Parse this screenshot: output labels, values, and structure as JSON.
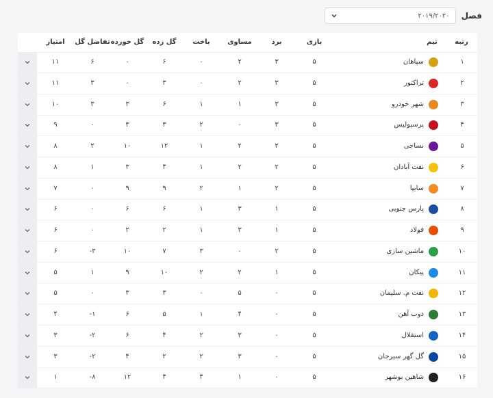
{
  "season": {
    "label": "فصل",
    "selected": "۲۰۱۹/۲۰۲۰"
  },
  "headers": {
    "rank": "رتبه",
    "team": "تیم",
    "games": "بازی",
    "wins": "برد",
    "draws": "مساوی",
    "losses": "باخت",
    "gf": "گل زده",
    "ga": "گل خورده",
    "gd": "تفاضل گل",
    "pts": "امتیاز"
  },
  "rows": [
    {
      "rank": "۱",
      "team": "سپاهان",
      "games": "۵",
      "wins": "۳",
      "draws": "۲",
      "losses": "۰",
      "gf": "۶",
      "ga": "۰",
      "gd": "۶",
      "pts": "۱۱",
      "logo_color": "#d4a017"
    },
    {
      "rank": "۲",
      "team": "تراکتور",
      "games": "۵",
      "wins": "۳",
      "draws": "۲",
      "losses": "۰",
      "gf": "۳",
      "ga": "۰",
      "gd": "۳",
      "pts": "۱۱",
      "logo_color": "#d62828"
    },
    {
      "rank": "۳",
      "team": "شهر خودرو",
      "games": "۵",
      "wins": "۳",
      "draws": "۱",
      "losses": "۱",
      "gf": "۶",
      "ga": "۳",
      "gd": "۳",
      "pts": "۱۰",
      "logo_color": "#e8891d"
    },
    {
      "rank": "۴",
      "team": "پرسپولیس",
      "games": "۵",
      "wins": "۳",
      "draws": "۰",
      "losses": "۲",
      "gf": "۳",
      "ga": "۳",
      "gd": "۰",
      "pts": "۹",
      "logo_color": "#c1121f"
    },
    {
      "rank": "۵",
      "team": "نساجی",
      "games": "۵",
      "wins": "۲",
      "draws": "۲",
      "losses": "۱",
      "gf": "۱۲",
      "ga": "۱۰",
      "gd": "۲",
      "pts": "۸",
      "logo_color": "#6a1b9a"
    },
    {
      "rank": "۶",
      "team": "نفت آبادان",
      "games": "۵",
      "wins": "۲",
      "draws": "۲",
      "losses": "۱",
      "gf": "۴",
      "ga": "۳",
      "gd": "۱",
      "pts": "۸",
      "logo_color": "#f4c20d"
    },
    {
      "rank": "۷",
      "team": "سایپا",
      "games": "۵",
      "wins": "۲",
      "draws": "۱",
      "losses": "۲",
      "gf": "۹",
      "ga": "۹",
      "gd": "۰",
      "pts": "۷",
      "logo_color": "#f28c28"
    },
    {
      "rank": "۸",
      "team": "پارس جنوبی",
      "games": "۵",
      "wins": "۱",
      "draws": "۳",
      "losses": "۱",
      "gf": "۶",
      "ga": "۶",
      "gd": "۰",
      "pts": "۶",
      "logo_color": "#1d4e9e"
    },
    {
      "rank": "۹",
      "team": "فولاد",
      "games": "۵",
      "wins": "۱",
      "draws": "۳",
      "losses": "۱",
      "gf": "۲",
      "ga": "۲",
      "gd": "۰",
      "pts": "۶",
      "logo_color": "#e65100"
    },
    {
      "rank": "۱۰",
      "team": "ماشین سازی",
      "games": "۵",
      "wins": "۲",
      "draws": "۰",
      "losses": "۳",
      "gf": "۷",
      "ga": "۱۰",
      "gd": "-۳",
      "pts": "۶",
      "logo_color": "#2e9e4f"
    },
    {
      "rank": "۱۱",
      "team": "پیکان",
      "games": "۵",
      "wins": "۱",
      "draws": "۲",
      "losses": "۲",
      "gf": "۱۰",
      "ga": "۹",
      "gd": "۱",
      "pts": "۵",
      "logo_color": "#1e88e5"
    },
    {
      "rank": "۱۲",
      "team": "نفت م. سلیمان",
      "games": "۵",
      "wins": "۰",
      "draws": "۵",
      "losses": "۰",
      "gf": "۳",
      "ga": "۳",
      "gd": "۰",
      "pts": "۵",
      "logo_color": "#f2b705"
    },
    {
      "rank": "۱۳",
      "team": "ذوب آهن",
      "games": "۵",
      "wins": "۰",
      "draws": "۴",
      "losses": "۱",
      "gf": "۵",
      "ga": "۶",
      "gd": "-۱",
      "pts": "۴",
      "logo_color": "#2e7d32"
    },
    {
      "rank": "۱۴",
      "team": "استقلال",
      "games": "۵",
      "wins": "۰",
      "draws": "۳",
      "losses": "۲",
      "gf": "۴",
      "ga": "۶",
      "gd": "-۲",
      "pts": "۳",
      "logo_color": "#1565c0"
    },
    {
      "rank": "۱۵",
      "team": "گل گهر سیرجان",
      "games": "۵",
      "wins": "۰",
      "draws": "۳",
      "losses": "۲",
      "gf": "۲",
      "ga": "۴",
      "gd": "-۲",
      "pts": "۳",
      "logo_color": "#0d47a1"
    },
    {
      "rank": "۱۶",
      "team": "شاهین بوشهر",
      "games": "۵",
      "wins": "۰",
      "draws": "۱",
      "losses": "۴",
      "gf": "۴",
      "ga": "۱۲",
      "gd": "-۸",
      "pts": "۱",
      "logo_color": "#222222"
    }
  ]
}
